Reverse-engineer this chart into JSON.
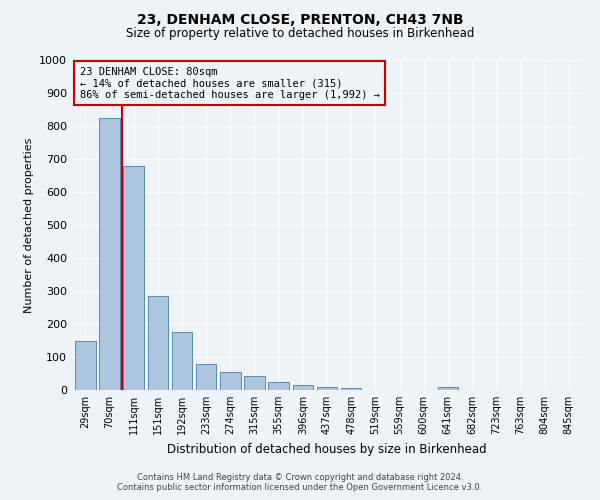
{
  "title": "23, DENHAM CLOSE, PRENTON, CH43 7NB",
  "subtitle": "Size of property relative to detached houses in Birkenhead",
  "xlabel": "Distribution of detached houses by size in Birkenhead",
  "ylabel": "Number of detached properties",
  "categories": [
    "29sqm",
    "70sqm",
    "111sqm",
    "151sqm",
    "192sqm",
    "233sqm",
    "274sqm",
    "315sqm",
    "355sqm",
    "396sqm",
    "437sqm",
    "478sqm",
    "519sqm",
    "559sqm",
    "600sqm",
    "641sqm",
    "682sqm",
    "723sqm",
    "763sqm",
    "804sqm",
    "845sqm"
  ],
  "values": [
    150,
    825,
    680,
    285,
    175,
    78,
    55,
    42,
    23,
    15,
    10,
    5,
    0,
    0,
    0,
    10,
    0,
    0,
    0,
    0,
    0
  ],
  "bar_color": "#adc6e0",
  "bar_edge_color": "#5a8ab5",
  "vline_x": 1.5,
  "vline_color": "#cc0000",
  "annotation_title": "23 DENHAM CLOSE: 80sqm",
  "annotation_line1": "← 14% of detached houses are smaller (315)",
  "annotation_line2": "86% of semi-detached houses are larger (1,992) →",
  "annotation_box_color": "#cc0000",
  "ylim": [
    0,
    1000
  ],
  "yticks": [
    0,
    100,
    200,
    300,
    400,
    500,
    600,
    700,
    800,
    900,
    1000
  ],
  "footer1": "Contains HM Land Registry data © Crown copyright and database right 2024.",
  "footer2": "Contains public sector information licensed under the Open Government Licence v3.0.",
  "bg_color": "#eef3f8",
  "grid_color": "#ffffff"
}
